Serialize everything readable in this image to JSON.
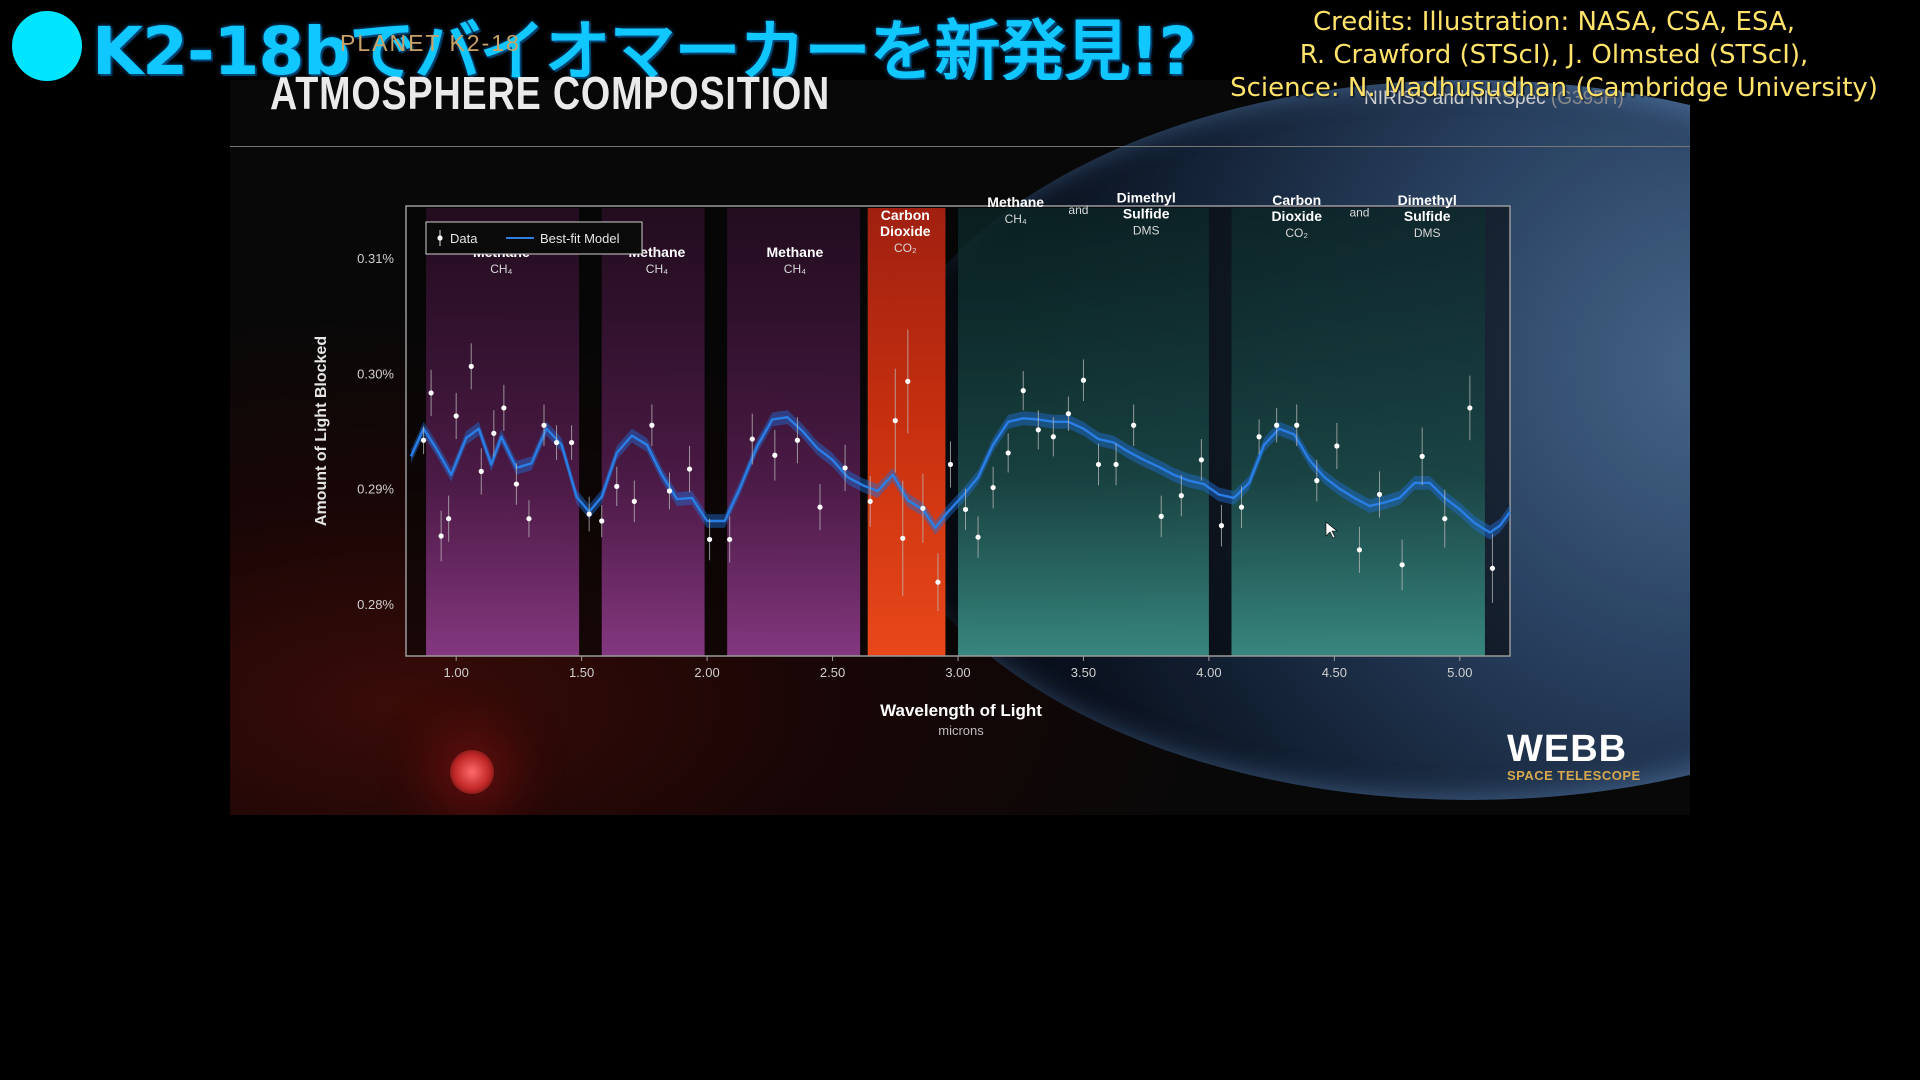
{
  "caption": {
    "text": "K2-18bでバイオマーカーを新発見!?"
  },
  "credits": {
    "line1": "Credits: Illustration: NASA, CSA, ESA,",
    "line2": "R. Crawford (STScI), J. Olmsted (STScI),",
    "line3": "Science: N. Madhusudhan (Cambridge University)"
  },
  "slide": {
    "subtitle": "PLANET K2-18",
    "title": "ATMOSPHERE COMPOSITION",
    "instrument": "NIRISS and NIRSpec",
    "instrument_mode": "(G395H)"
  },
  "logo": {
    "name": "WEBB",
    "subtitle": "SPACE TELESCOPE"
  },
  "colors": {
    "model": "#1e6fd6",
    "methane_band": "#7a2a70",
    "co2_band": "#e8431a",
    "dms_band": "#2d7a6e",
    "caption": "#11c7ff",
    "credits": "#ffe36a"
  },
  "chart_data": {
    "type": "scatter",
    "xlabel": "Wavelength of Light",
    "xunit": "microns",
    "ylabel": "Amount of Light Blocked",
    "xlim": [
      0.8,
      5.2
    ],
    "ylim": [
      0.2755,
      0.3145
    ],
    "xticks": [
      1.0,
      1.5,
      2.0,
      2.5,
      3.0,
      3.5,
      4.0,
      4.5,
      5.0
    ],
    "xtick_labels": [
      "1.00",
      "1.50",
      "2.00",
      "2.50",
      "3.00",
      "3.50",
      "4.00",
      "4.50",
      "5.00"
    ],
    "yticks": [
      0.28,
      0.29,
      0.3,
      0.31
    ],
    "ytick_labels": [
      "0.28%",
      "0.29%",
      "0.30%",
      "0.31%"
    ],
    "legend": {
      "position": "top-left",
      "entries": [
        "Data",
        "Best-fit Model"
      ]
    },
    "bands": [
      {
        "x0": 0.88,
        "x1": 1.49,
        "kind": "methane",
        "label": "Methane",
        "formula": "CH₄"
      },
      {
        "x0": 1.58,
        "x1": 1.99,
        "kind": "methane",
        "label": "Methane",
        "formula": "CH₄"
      },
      {
        "x0": 2.08,
        "x1": 2.61,
        "kind": "methane",
        "label": "Methane",
        "formula": "CH₄"
      },
      {
        "x0": 2.64,
        "x1": 2.95,
        "kind": "co2",
        "label": "Carbon Dioxide",
        "formula": "CO₂"
      },
      {
        "x0": 3.0,
        "x1": 4.0,
        "kind": "dms"
      },
      {
        "x0": 4.09,
        "x1": 5.1,
        "kind": "dms"
      }
    ],
    "band_labels": [
      {
        "x": 1.18,
        "y": 0.3101,
        "lines": [
          "Methane"
        ],
        "formula": "CH₄",
        "bold": true
      },
      {
        "x": 1.8,
        "y": 0.3101,
        "lines": [
          "Methane"
        ],
        "formula": "CH₄",
        "bold": true
      },
      {
        "x": 2.35,
        "y": 0.3101,
        "lines": [
          "Methane"
        ],
        "formula": "CH₄",
        "bold": true
      },
      {
        "x": 2.79,
        "y": 0.3133,
        "lines": [
          "Carbon",
          "Dioxide"
        ],
        "formula": "CO₂",
        "bold": true
      },
      {
        "x": 3.23,
        "y": 0.3144,
        "lines": [
          "Methane"
        ],
        "formula": "CH₄",
        "bold": true
      },
      {
        "x": 3.48,
        "y": 0.3138,
        "lines": [
          "and"
        ],
        "formula": "",
        "bold": false
      },
      {
        "x": 3.75,
        "y": 0.3148,
        "lines": [
          "Dimethyl",
          "Sulfide"
        ],
        "formula": "DMS",
        "bold": true
      },
      {
        "x": 4.35,
        "y": 0.3146,
        "lines": [
          "Carbon",
          "Dioxide"
        ],
        "formula": "CO₂",
        "bold": true
      },
      {
        "x": 4.6,
        "y": 0.3136,
        "lines": [
          "and"
        ],
        "formula": "",
        "bold": false
      },
      {
        "x": 4.87,
        "y": 0.3146,
        "lines": [
          "Dimethyl",
          "Sulfide"
        ],
        "formula": "DMS",
        "bold": true
      }
    ],
    "data": [
      {
        "x": 0.87,
        "y": 0.2942,
        "err": 0.0012
      },
      {
        "x": 0.9,
        "y": 0.2983,
        "err": 0.002
      },
      {
        "x": 0.94,
        "y": 0.2859,
        "err": 0.0022
      },
      {
        "x": 0.97,
        "y": 0.2874,
        "err": 0.002
      },
      {
        "x": 1.0,
        "y": 0.2963,
        "err": 0.002
      },
      {
        "x": 1.06,
        "y": 0.3006,
        "err": 0.002
      },
      {
        "x": 1.1,
        "y": 0.2915,
        "err": 0.002
      },
      {
        "x": 1.15,
        "y": 0.2948,
        "err": 0.002
      },
      {
        "x": 1.19,
        "y": 0.297,
        "err": 0.002
      },
      {
        "x": 1.24,
        "y": 0.2904,
        "err": 0.0018
      },
      {
        "x": 1.29,
        "y": 0.2874,
        "err": 0.0016
      },
      {
        "x": 1.35,
        "y": 0.2955,
        "err": 0.0018
      },
      {
        "x": 1.4,
        "y": 0.294,
        "err": 0.0015
      },
      {
        "x": 1.46,
        "y": 0.294,
        "err": 0.0015
      },
      {
        "x": 1.53,
        "y": 0.2878,
        "err": 0.0015
      },
      {
        "x": 1.58,
        "y": 0.2872,
        "err": 0.0014
      },
      {
        "x": 1.64,
        "y": 0.2902,
        "err": 0.0017
      },
      {
        "x": 1.71,
        "y": 0.2889,
        "err": 0.0018
      },
      {
        "x": 1.78,
        "y": 0.2955,
        "err": 0.0018
      },
      {
        "x": 1.85,
        "y": 0.2898,
        "err": 0.0016
      },
      {
        "x": 1.93,
        "y": 0.2917,
        "err": 0.002
      },
      {
        "x": 2.01,
        "y": 0.2856,
        "err": 0.0018
      },
      {
        "x": 2.09,
        "y": 0.2856,
        "err": 0.002
      },
      {
        "x": 2.18,
        "y": 0.2943,
        "err": 0.0022
      },
      {
        "x": 2.27,
        "y": 0.2929,
        "err": 0.0022
      },
      {
        "x": 2.36,
        "y": 0.2942,
        "err": 0.002
      },
      {
        "x": 2.45,
        "y": 0.2884,
        "err": 0.002
      },
      {
        "x": 2.55,
        "y": 0.2918,
        "err": 0.002
      },
      {
        "x": 2.65,
        "y": 0.2889,
        "err": 0.0022
      },
      {
        "x": 2.75,
        "y": 0.2959,
        "err": 0.0045
      },
      {
        "x": 2.78,
        "y": 0.2857,
        "err": 0.005
      },
      {
        "x": 2.8,
        "y": 0.2993,
        "err": 0.0045
      },
      {
        "x": 2.86,
        "y": 0.2883,
        "err": 0.003
      },
      {
        "x": 2.92,
        "y": 0.2819,
        "err": 0.0025
      },
      {
        "x": 2.97,
        "y": 0.2921,
        "err": 0.002
      },
      {
        "x": 3.03,
        "y": 0.2882,
        "err": 0.0018
      },
      {
        "x": 3.08,
        "y": 0.2858,
        "err": 0.0018
      },
      {
        "x": 3.14,
        "y": 0.2901,
        "err": 0.0018
      },
      {
        "x": 3.2,
        "y": 0.2931,
        "err": 0.0017
      },
      {
        "x": 3.26,
        "y": 0.2985,
        "err": 0.0017
      },
      {
        "x": 3.32,
        "y": 0.2951,
        "err": 0.0017
      },
      {
        "x": 3.38,
        "y": 0.2945,
        "err": 0.0017
      },
      {
        "x": 3.44,
        "y": 0.2965,
        "err": 0.0015
      },
      {
        "x": 3.5,
        "y": 0.2994,
        "err": 0.0018
      },
      {
        "x": 3.56,
        "y": 0.2921,
        "err": 0.0018
      },
      {
        "x": 3.63,
        "y": 0.2921,
        "err": 0.0018
      },
      {
        "x": 3.7,
        "y": 0.2955,
        "err": 0.0018
      },
      {
        "x": 3.81,
        "y": 0.2876,
        "err": 0.0018
      },
      {
        "x": 3.89,
        "y": 0.2894,
        "err": 0.0018
      },
      {
        "x": 3.97,
        "y": 0.2925,
        "err": 0.0018
      },
      {
        "x": 4.05,
        "y": 0.2868,
        "err": 0.0018
      },
      {
        "x": 4.13,
        "y": 0.2884,
        "err": 0.0018
      },
      {
        "x": 4.2,
        "y": 0.2945,
        "err": 0.0015
      },
      {
        "x": 4.27,
        "y": 0.2955,
        "err": 0.0015
      },
      {
        "x": 4.35,
        "y": 0.2955,
        "err": 0.0018
      },
      {
        "x": 4.43,
        "y": 0.2907,
        "err": 0.0018
      },
      {
        "x": 4.51,
        "y": 0.2937,
        "err": 0.002
      },
      {
        "x": 4.6,
        "y": 0.2847,
        "err": 0.002
      },
      {
        "x": 4.68,
        "y": 0.2895,
        "err": 0.002
      },
      {
        "x": 4.77,
        "y": 0.2834,
        "err": 0.0022
      },
      {
        "x": 4.85,
        "y": 0.2928,
        "err": 0.0025
      },
      {
        "x": 4.94,
        "y": 0.2874,
        "err": 0.0025
      },
      {
        "x": 5.04,
        "y": 0.297,
        "err": 0.0028
      },
      {
        "x": 5.13,
        "y": 0.2831,
        "err": 0.003
      }
    ],
    "model": [
      [
        0.82,
        0.2928
      ],
      [
        0.87,
        0.2952
      ],
      [
        0.92,
        0.2935
      ],
      [
        0.98,
        0.2912
      ],
      [
        1.04,
        0.2944
      ],
      [
        1.09,
        0.2952
      ],
      [
        1.14,
        0.2921
      ],
      [
        1.18,
        0.2945
      ],
      [
        1.24,
        0.2918
      ],
      [
        1.3,
        0.2922
      ],
      [
        1.36,
        0.2952
      ],
      [
        1.42,
        0.2938
      ],
      [
        1.48,
        0.2893
      ],
      [
        1.53,
        0.288
      ],
      [
        1.58,
        0.2893
      ],
      [
        1.64,
        0.2931
      ],
      [
        1.7,
        0.2946
      ],
      [
        1.76,
        0.2938
      ],
      [
        1.82,
        0.2912
      ],
      [
        1.88,
        0.2891
      ],
      [
        1.94,
        0.2892
      ],
      [
        2.0,
        0.2872
      ],
      [
        2.07,
        0.2872
      ],
      [
        2.13,
        0.29
      ],
      [
        2.2,
        0.2937
      ],
      [
        2.26,
        0.296
      ],
      [
        2.32,
        0.2962
      ],
      [
        2.38,
        0.295
      ],
      [
        2.44,
        0.2935
      ],
      [
        2.5,
        0.2925
      ],
      [
        2.56,
        0.291
      ],
      [
        2.62,
        0.2903
      ],
      [
        2.68,
        0.2898
      ],
      [
        2.74,
        0.2912
      ],
      [
        2.8,
        0.289
      ],
      [
        2.86,
        0.2882
      ],
      [
        2.91,
        0.2866
      ],
      [
        2.96,
        0.288
      ],
      [
        3.02,
        0.2894
      ],
      [
        3.08,
        0.291
      ],
      [
        3.14,
        0.2938
      ],
      [
        3.2,
        0.2958
      ],
      [
        3.26,
        0.2961
      ],
      [
        3.32,
        0.296
      ],
      [
        3.38,
        0.2958
      ],
      [
        3.44,
        0.2958
      ],
      [
        3.5,
        0.2952
      ],
      [
        3.56,
        0.2943
      ],
      [
        3.62,
        0.294
      ],
      [
        3.68,
        0.2932
      ],
      [
        3.74,
        0.2925
      ],
      [
        3.8,
        0.2919
      ],
      [
        3.86,
        0.2912
      ],
      [
        3.92,
        0.2907
      ],
      [
        3.98,
        0.2904
      ],
      [
        4.04,
        0.2895
      ],
      [
        4.1,
        0.2892
      ],
      [
        4.16,
        0.2905
      ],
      [
        4.22,
        0.2938
      ],
      [
        4.28,
        0.2952
      ],
      [
        4.34,
        0.2947
      ],
      [
        4.4,
        0.2925
      ],
      [
        4.46,
        0.291
      ],
      [
        4.52,
        0.29
      ],
      [
        4.58,
        0.2892
      ],
      [
        4.64,
        0.2885
      ],
      [
        4.7,
        0.2888
      ],
      [
        4.76,
        0.2892
      ],
      [
        4.82,
        0.2905
      ],
      [
        4.88,
        0.2905
      ],
      [
        4.94,
        0.2892
      ],
      [
        5.0,
        0.2882
      ],
      [
        5.06,
        0.287
      ],
      [
        5.12,
        0.2862
      ],
      [
        5.16,
        0.2868
      ],
      [
        5.2,
        0.288
      ]
    ]
  }
}
